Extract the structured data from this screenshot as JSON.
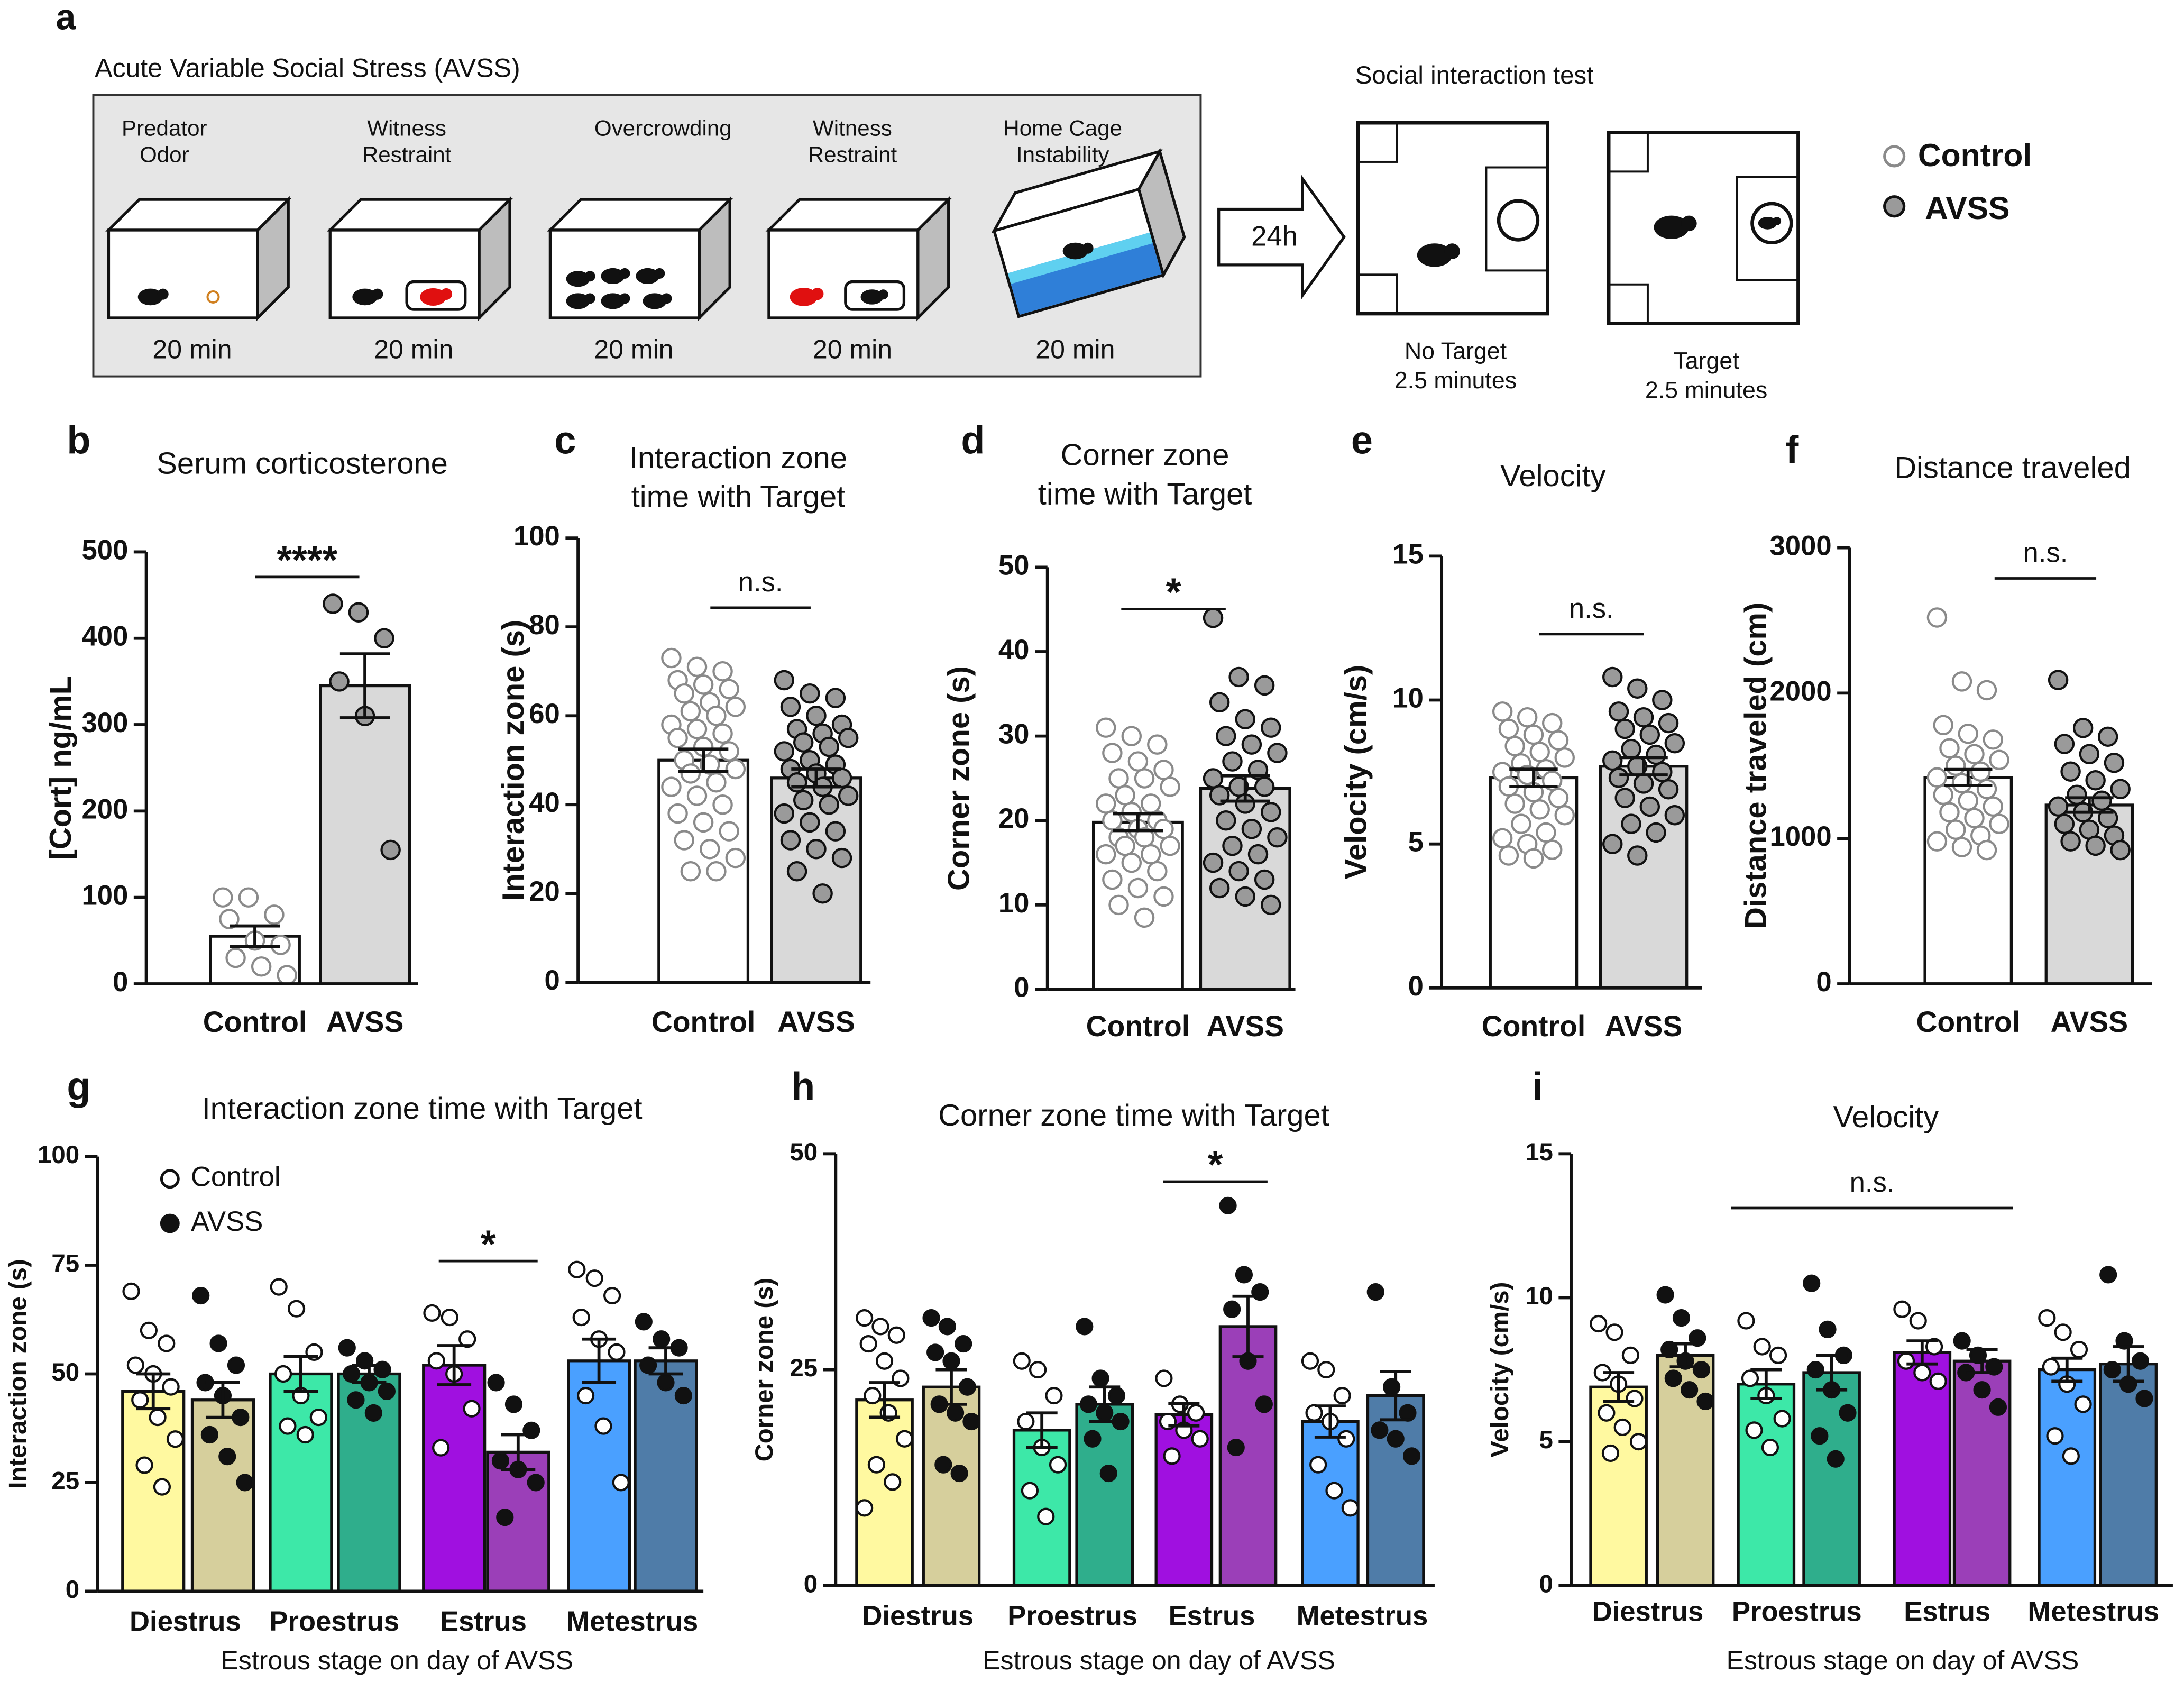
{
  "diagram": {
    "panel": "a",
    "title": "Acute Variable Social Stress (AVSS)",
    "steps": [
      {
        "label": [
          {
            "text": "Predator",
            "color": "#111111"
          },
          {
            "text": "Odor",
            "color": "#111111"
          }
        ],
        "duration": "20 min"
      },
      {
        "label": [
          {
            "text": "Witness",
            "color": "#111111"
          },
          {
            "text": "Restraint",
            "color": "#e01010"
          }
        ],
        "duration": "20 min"
      },
      {
        "label": [
          {
            "text": "Overcrowding",
            "color": "#111111"
          }
        ],
        "duration": "20 min"
      },
      {
        "label": [
          {
            "text": "Witness",
            "color": "#e01010"
          },
          {
            "text": "Restraint",
            "color": "#111111"
          }
        ],
        "duration": "20 min"
      },
      {
        "label": [
          {
            "text": "Home Cage",
            "color": "#111111"
          },
          {
            "text": "Instability",
            "color": "#111111"
          }
        ],
        "duration": "20 min"
      }
    ],
    "arrow": "24h",
    "test_title": "Social interaction test",
    "tests": [
      {
        "label": "No Target",
        "duration": "2.5 minutes"
      },
      {
        "label": "Target",
        "duration": "2.5 minutes"
      }
    ],
    "legend": [
      {
        "name": "Control",
        "fill": "#ffffff",
        "stroke": "#8a8a8a"
      },
      {
        "name": "AVSS",
        "fill": "#9a9a9a",
        "stroke": "#111111"
      }
    ]
  },
  "chart_data": [
    {
      "type": "bar",
      "panel": "b",
      "title": "Serum corticosterone",
      "ylabel": "[Cort] ng/mL",
      "categories": [
        "Control",
        "AVSS"
      ],
      "values": [
        55,
        345
      ],
      "errors": [
        12,
        37
      ],
      "points": [
        [
          100,
          100,
          80,
          75,
          50,
          45,
          30,
          20,
          10
        ],
        [
          440,
          430,
          400,
          350,
          310,
          155
        ]
      ],
      "colors": [
        "#ffffff",
        "#d9d9d9"
      ],
      "point_fills": [
        "#ffffff",
        "#9a9a9a"
      ],
      "point_strokes": [
        "#8a8a8a",
        "#111111"
      ],
      "ylim": [
        0,
        500
      ],
      "yticks": [
        0,
        100,
        200,
        300,
        400,
        500
      ],
      "significance": "****"
    },
    {
      "type": "bar",
      "panel": "c",
      "title": [
        "Interaction zone",
        "time with Target"
      ],
      "ylabel": "Interaction zone  (s)",
      "categories": [
        "Control",
        "AVSS"
      ],
      "values": [
        50,
        46
      ],
      "errors": [
        2.5,
        2
      ],
      "points": [
        [
          73,
          71,
          70,
          68,
          67,
          66,
          65,
          63,
          62,
          61,
          60,
          58,
          57,
          56,
          55,
          53,
          52,
          50,
          49,
          48,
          47,
          45,
          44,
          42,
          40,
          38,
          36,
          34,
          32,
          30,
          28,
          25,
          25
        ],
        [
          68,
          65,
          64,
          62,
          60,
          58,
          57,
          56,
          55,
          54,
          53,
          52,
          50,
          49,
          48,
          47,
          46,
          45,
          44,
          42,
          41,
          40,
          38,
          36,
          34,
          32,
          30,
          28,
          25,
          20
        ]
      ],
      "colors": [
        "#ffffff",
        "#d9d9d9"
      ],
      "point_fills": [
        "#ffffff",
        "#9a9a9a"
      ],
      "point_strokes": [
        "#8a8a8a",
        "#111111"
      ],
      "ylim": [
        0,
        100
      ],
      "yticks": [
        0,
        20,
        40,
        60,
        80,
        100
      ],
      "significance": "n.s."
    },
    {
      "type": "bar",
      "panel": "d",
      "title": [
        "Corner zone",
        "time with Target"
      ],
      "ylabel": "Corner zone  (s)",
      "categories": [
        "Control",
        "AVSS"
      ],
      "values": [
        19.8,
        23.8
      ],
      "errors": [
        1,
        1.5
      ],
      "points": [
        [
          31,
          30,
          29,
          28,
          27,
          26,
          25,
          25,
          24,
          23,
          22,
          22,
          21,
          20,
          20,
          19,
          19,
          18,
          18,
          17,
          17,
          16,
          16,
          15,
          14,
          13,
          12,
          11,
          10,
          8.5
        ],
        [
          44,
          37,
          36,
          34,
          32,
          31,
          30,
          29,
          28,
          27,
          26,
          25,
          24,
          24,
          23,
          22,
          21,
          20,
          19,
          18,
          17,
          16,
          15,
          14,
          13,
          12,
          11,
          10
        ]
      ],
      "colors": [
        "#ffffff",
        "#d9d9d9"
      ],
      "point_fills": [
        "#ffffff",
        "#9a9a9a"
      ],
      "point_strokes": [
        "#8a8a8a",
        "#111111"
      ],
      "ylim": [
        0,
        50
      ],
      "yticks": [
        0,
        10,
        20,
        30,
        40,
        50
      ],
      "significance": "*"
    },
    {
      "type": "bar",
      "panel": "e",
      "title": "Velocity",
      "ylabel": "Velocity  (cm/s)",
      "categories": [
        "Control",
        "AVSS"
      ],
      "values": [
        7.3,
        7.7
      ],
      "errors": [
        0.3,
        0.3
      ],
      "points": [
        [
          9.6,
          9.4,
          9.2,
          9.0,
          8.8,
          8.6,
          8.4,
          8.2,
          8.0,
          7.8,
          7.6,
          7.5,
          7.4,
          7.2,
          7.0,
          6.8,
          6.6,
          6.4,
          6.2,
          6.0,
          5.7,
          5.4,
          5.2,
          5.0,
          4.8,
          4.6,
          4.5
        ],
        [
          10.8,
          10.4,
          10.0,
          9.6,
          9.4,
          9.2,
          9.0,
          8.8,
          8.5,
          8.3,
          8.1,
          7.9,
          7.7,
          7.5,
          7.3,
          7.1,
          6.9,
          6.6,
          6.3,
          6.0,
          5.7,
          5.4,
          5.0,
          4.6
        ]
      ],
      "colors": [
        "#ffffff",
        "#d9d9d9"
      ],
      "point_fills": [
        "#ffffff",
        "#9a9a9a"
      ],
      "point_strokes": [
        "#8a8a8a",
        "#111111"
      ],
      "ylim": [
        0,
        15
      ],
      "yticks": [
        0,
        5,
        10,
        15
      ],
      "significance": "n.s."
    },
    {
      "type": "bar",
      "panel": "f",
      "title": "Distance traveled",
      "ylabel": "Distance traveled (cm)",
      "categories": [
        "Control",
        "AVSS"
      ],
      "values": [
        1420,
        1230
      ],
      "errors": [
        55,
        50
      ],
      "points": [
        [
          2520,
          2080,
          2020,
          1780,
          1720,
          1680,
          1620,
          1580,
          1540,
          1500,
          1460,
          1420,
          1380,
          1340,
          1300,
          1260,
          1220,
          1180,
          1140,
          1100,
          1060,
          1020,
          980,
          940,
          920
        ],
        [
          2090,
          1760,
          1700,
          1650,
          1580,
          1520,
          1460,
          1400,
          1340,
          1300,
          1260,
          1220,
          1180,
          1140,
          1100,
          1060,
          1020,
          980,
          950,
          920
        ]
      ],
      "colors": [
        "#ffffff",
        "#d9d9d9"
      ],
      "point_fills": [
        "#ffffff",
        "#9a9a9a"
      ],
      "point_strokes": [
        "#8a8a8a",
        "#111111"
      ],
      "ylim": [
        0,
        3000
      ],
      "yticks": [
        0,
        1000,
        2000,
        3000
      ],
      "significance": "n.s."
    },
    {
      "type": "bar",
      "panel": "g",
      "title": "Interaction zone time with Target",
      "ylabel": "Interaction zone (s)",
      "xlabel": "Estrous stage on day of AVSS",
      "categories": [
        "Diestrus",
        "Proestrus",
        "Estrus",
        "Metestrus"
      ],
      "legend": true,
      "series": [
        {
          "name": "Control",
          "colors": [
            "#fff9a0",
            "#3de8a8",
            "#a010e0",
            "#4aa0ff"
          ],
          "point_fill": "#ffffff",
          "values": [
            46,
            50,
            52,
            53
          ],
          "errors": [
            4,
            4,
            4.5,
            5
          ],
          "points": [
            [
              69,
              60,
              57,
              52,
              50,
              47,
              44,
              40,
              35,
              29,
              24
            ],
            [
              70,
              65,
              55,
              50,
              45,
              40,
              38,
              36
            ],
            [
              64,
              63,
              58,
              53,
              50,
              42,
              33
            ],
            [
              74,
              72,
              68,
              63,
              58,
              55,
              45,
              38,
              25
            ]
          ]
        },
        {
          "name": "AVSS",
          "colors": [
            "#d6cf9c",
            "#2fae8c",
            "#9b3fb8",
            "#4f7ca8"
          ],
          "point_fill": "#111111",
          "values": [
            44,
            50,
            32,
            53
          ],
          "errors": [
            4,
            2,
            4,
            3
          ],
          "points": [
            [
              68,
              57,
              52,
              48,
              45,
              40,
              36,
              31,
              25
            ],
            [
              56,
              53,
              51,
              50,
              48,
              46,
              44,
              41
            ],
            [
              48,
              43,
              37,
              30,
              28,
              25,
              17
            ],
            [
              62,
              58,
              56,
              52,
              48,
              45
            ]
          ]
        }
      ],
      "ylim": [
        0,
        100
      ],
      "yticks": [
        0,
        25,
        50,
        75,
        100
      ],
      "significance": "*"
    },
    {
      "type": "bar",
      "panel": "h",
      "title": "Corner zone time with Target",
      "ylabel": "Corner zone (s)",
      "xlabel": "Estrous stage on day of AVSS",
      "categories": [
        "Diestrus",
        "Proestrus",
        "Estrus",
        "Metestrus"
      ],
      "legend": false,
      "series": [
        {
          "colors": [
            "#fff9a0",
            "#3de8a8",
            "#a010e0",
            "#4aa0ff"
          ],
          "point_fill": "#ffffff",
          "values": [
            21.5,
            18,
            19.8,
            19
          ],
          "errors": [
            2,
            2,
            1.3,
            1.8
          ],
          "points": [
            [
              31,
              30,
              29,
              28,
              26,
              24,
              22,
              20,
              17,
              14,
              12,
              9
            ],
            [
              26,
              25,
              22,
              19,
              16,
              14,
              11,
              8
            ],
            [
              24,
              21,
              20,
              19,
              18,
              17,
              15
            ],
            [
              26,
              25,
              22,
              20,
              19,
              17,
              14,
              11,
              9
            ]
          ]
        },
        {
          "colors": [
            "#d6cf9c",
            "#2fae8c",
            "#9b3fb8",
            "#4f7ca8"
          ],
          "point_fill": "#111111",
          "values": [
            23,
            21,
            30,
            22
          ],
          "errors": [
            2,
            2,
            3.5,
            2.8
          ],
          "points": [
            [
              31,
              30,
              28,
              27,
              26,
              23,
              21,
              20,
              19,
              14,
              13
            ],
            [
              30,
              24,
              22,
              21,
              20,
              19,
              17,
              13
            ],
            [
              44,
              36,
              34,
              32,
              26,
              21,
              16
            ],
            [
              34,
              23,
              20,
              18,
              17,
              15
            ]
          ]
        }
      ],
      "ylim": [
        0,
        50
      ],
      "yticks": [
        0,
        25,
        50
      ],
      "significance": "*"
    },
    {
      "type": "bar",
      "panel": "i",
      "title": "Velocity",
      "ylabel": "Velocity (cm/s)",
      "xlabel": "Estrous stage on day of AVSS",
      "categories": [
        "Diestrus",
        "Proestrus",
        "Estrus",
        "Metestrus"
      ],
      "legend": false,
      "series": [
        {
          "colors": [
            "#fff9a0",
            "#3de8a8",
            "#a010e0",
            "#4aa0ff"
          ],
          "point_fill": "#ffffff",
          "values": [
            6.9,
            7.0,
            8.1,
            7.5
          ],
          "errors": [
            0.5,
            0.5,
            0.4,
            0.4
          ],
          "points": [
            [
              9.1,
              8.8,
              8.0,
              7.4,
              7.0,
              6.5,
              6.0,
              5.5,
              5.0,
              4.6
            ],
            [
              9.2,
              8.3,
              8.0,
              7.2,
              6.6,
              5.8,
              5.4,
              4.8
            ],
            [
              9.6,
              9.2,
              8.3,
              7.8,
              7.4,
              7.1
            ],
            [
              9.3,
              8.8,
              8.2,
              7.6,
              7.0,
              6.3,
              5.2,
              4.5
            ]
          ]
        },
        {
          "colors": [
            "#d6cf9c",
            "#2fae8c",
            "#9b3fb8",
            "#4f7ca8"
          ],
          "point_fill": "#111111",
          "values": [
            8.0,
            7.4,
            7.8,
            7.7
          ],
          "errors": [
            0.4,
            0.6,
            0.4,
            0.6
          ],
          "points": [
            [
              10.1,
              9.3,
              8.6,
              8.2,
              7.8,
              7.5,
              7.2,
              6.8,
              6.4
            ],
            [
              10.5,
              8.9,
              8.0,
              7.5,
              6.8,
              6.0,
              5.2,
              4.4
            ],
            [
              8.5,
              8.0,
              7.6,
              7.4,
              6.8,
              6.2
            ],
            [
              10.8,
              8.5,
              7.8,
              7.5,
              7.0,
              6.5
            ]
          ]
        }
      ],
      "ylim": [
        0,
        15
      ],
      "yticks": [
        0,
        5,
        10,
        15
      ],
      "significance": "n.s."
    }
  ]
}
